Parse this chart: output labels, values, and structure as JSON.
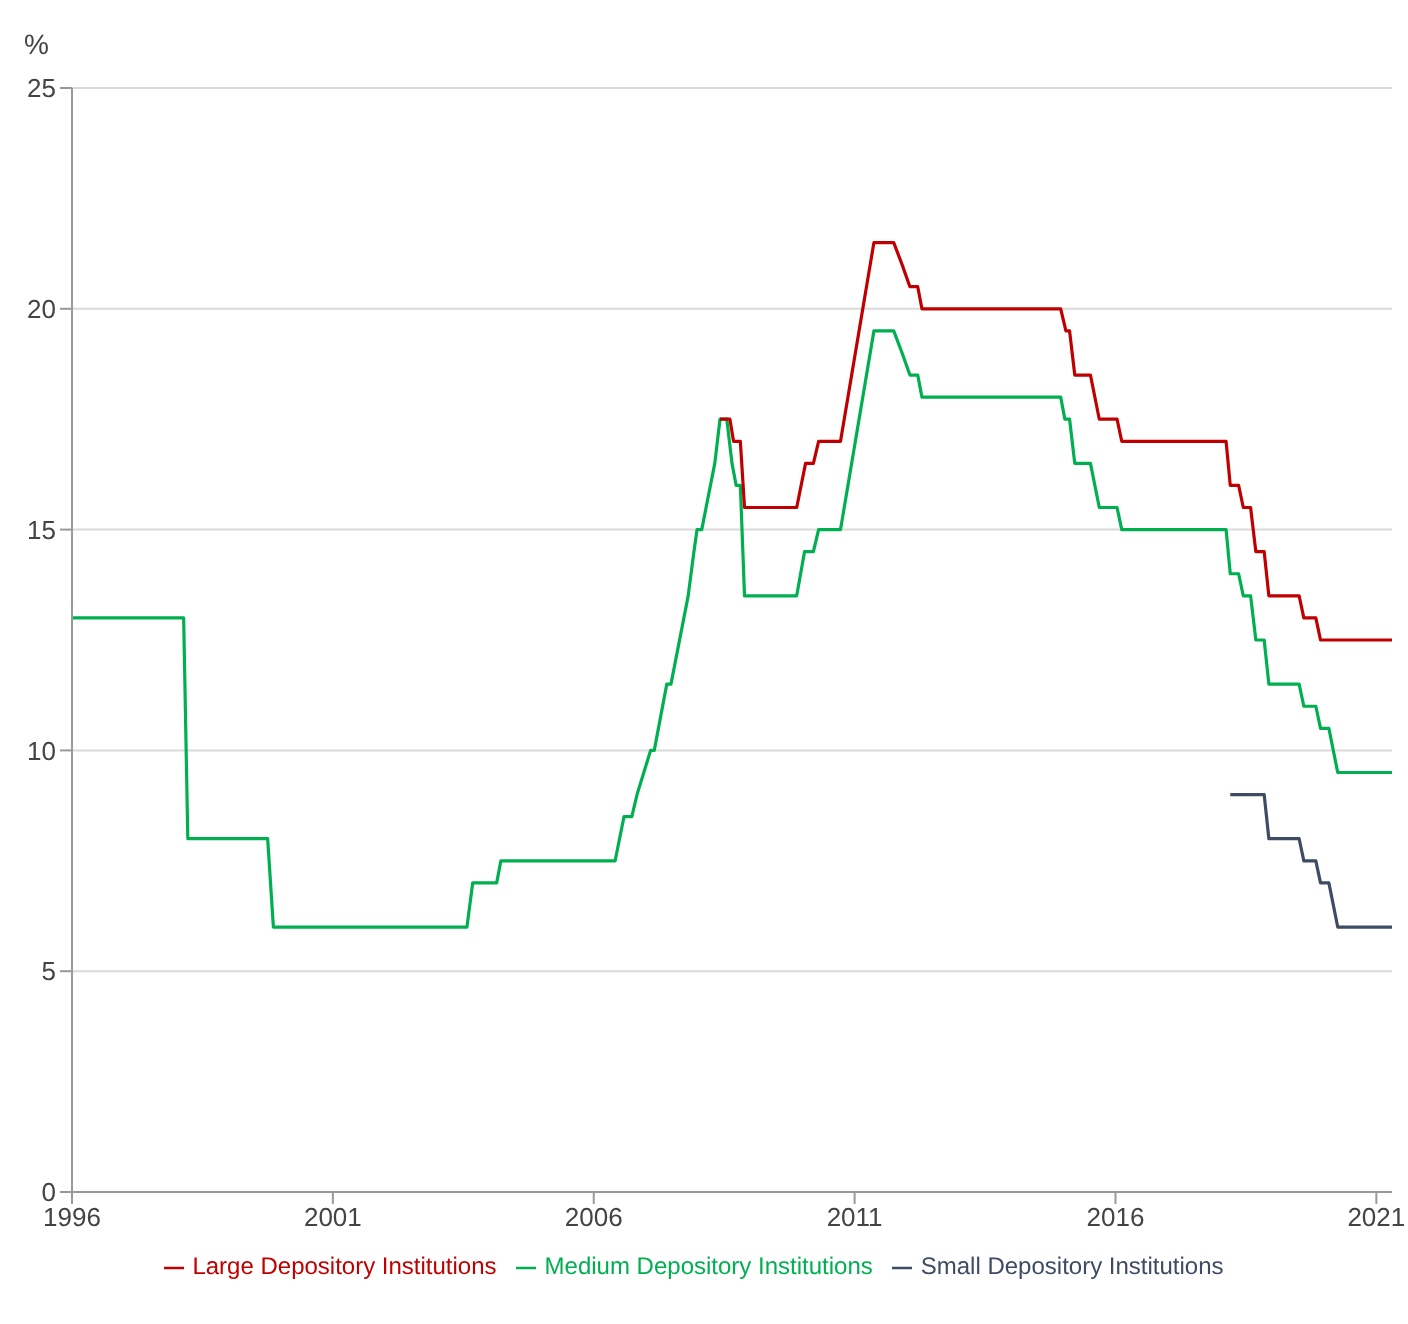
{
  "chart_data": {
    "type": "line",
    "ylabel": "%",
    "xlim": [
      1996,
      2021.3
    ],
    "xticks": [
      1996,
      2001,
      2006,
      2011,
      2016,
      2021
    ],
    "ylim": [
      0,
      25
    ],
    "yticks": [
      0,
      5,
      10,
      15,
      20,
      25
    ],
    "grid": "y",
    "legend": "bottom",
    "series": [
      {
        "name": "Small Depository Institutions",
        "color": "#3d4b63",
        "x": [
          2018.2,
          2018.85,
          2018.94,
          2019.52,
          2019.61,
          2019.84,
          2019.93,
          2020.09,
          2020.26,
          2021.3
        ],
        "values": [
          9,
          9,
          8,
          8,
          7.5,
          7.5,
          7,
          7,
          6,
          6
        ]
      },
      {
        "name": "Medium Depository Institutions",
        "color": "#00b050",
        "x": [
          1996,
          1998.14,
          1998.22,
          1999.75,
          1999.86,
          2003.57,
          2003.68,
          2004.14,
          2004.22,
          2006.41,
          2006.58,
          2006.73,
          2006.83,
          2007.09,
          2007.16,
          2007.4,
          2007.48,
          2007.81,
          2007.92,
          2007.98,
          2008.07,
          2008.32,
          2008.42,
          2008.55,
          2008.65,
          2008.73,
          2008.81,
          2008.89,
          2009.89,
          2010.04,
          2010.21,
          2010.31,
          2010.73,
          2011.37,
          2011.75,
          2011.91,
          2012.06,
          2012.21,
          2012.29,
          2014.95,
          2015.03,
          2015.12,
          2015.22,
          2015.52,
          2015.69,
          2016.03,
          2016.12,
          2018.12,
          2018.2,
          2018.36,
          2018.45,
          2018.59,
          2018.69,
          2018.85,
          2018.94,
          2019.52,
          2019.61,
          2019.84,
          2019.93,
          2020.09,
          2020.26,
          2021.3
        ],
        "values": [
          13,
          13,
          8,
          8,
          6,
          6,
          7,
          7,
          7.5,
          7.5,
          8.5,
          8.5,
          9,
          10,
          10,
          11.5,
          11.5,
          13.5,
          14.5,
          15,
          15,
          16.5,
          17.5,
          17.5,
          16.5,
          16,
          16,
          13.5,
          13.5,
          14.5,
          14.5,
          15,
          15,
          19.5,
          19.5,
          19,
          18.5,
          18.5,
          18,
          18,
          17.5,
          17.5,
          16.5,
          16.5,
          15.5,
          15.5,
          15,
          15,
          14,
          14,
          13.5,
          13.5,
          12.5,
          12.5,
          11.5,
          11.5,
          11,
          11,
          10.5,
          10.5,
          9.5,
          9.5
        ]
      },
      {
        "name": "Large Depository Institutions",
        "color": "#c00000",
        "x": [
          2008.42,
          2008.61,
          2008.68,
          2008.81,
          2008.89,
          2009.89,
          2010.06,
          2010.21,
          2010.31,
          2010.73,
          2011.37,
          2011.75,
          2011.91,
          2012.06,
          2012.21,
          2012.29,
          2014.95,
          2015.05,
          2015.12,
          2015.22,
          2015.52,
          2015.69,
          2016.03,
          2016.12,
          2018.12,
          2018.2,
          2018.36,
          2018.45,
          2018.59,
          2018.69,
          2018.85,
          2018.94,
          2019.52,
          2019.61,
          2019.84,
          2019.93,
          2021.3
        ],
        "values": [
          17.5,
          17.5,
          17,
          17,
          15.5,
          15.5,
          16.5,
          16.5,
          17,
          17,
          21.5,
          21.5,
          21,
          20.5,
          20.5,
          20,
          20,
          19.5,
          19.5,
          18.5,
          18.5,
          17.5,
          17.5,
          17,
          17,
          16,
          16,
          15.5,
          15.5,
          14.5,
          14.5,
          13.5,
          13.5,
          13,
          13,
          12.5,
          12.5
        ]
      }
    ]
  }
}
